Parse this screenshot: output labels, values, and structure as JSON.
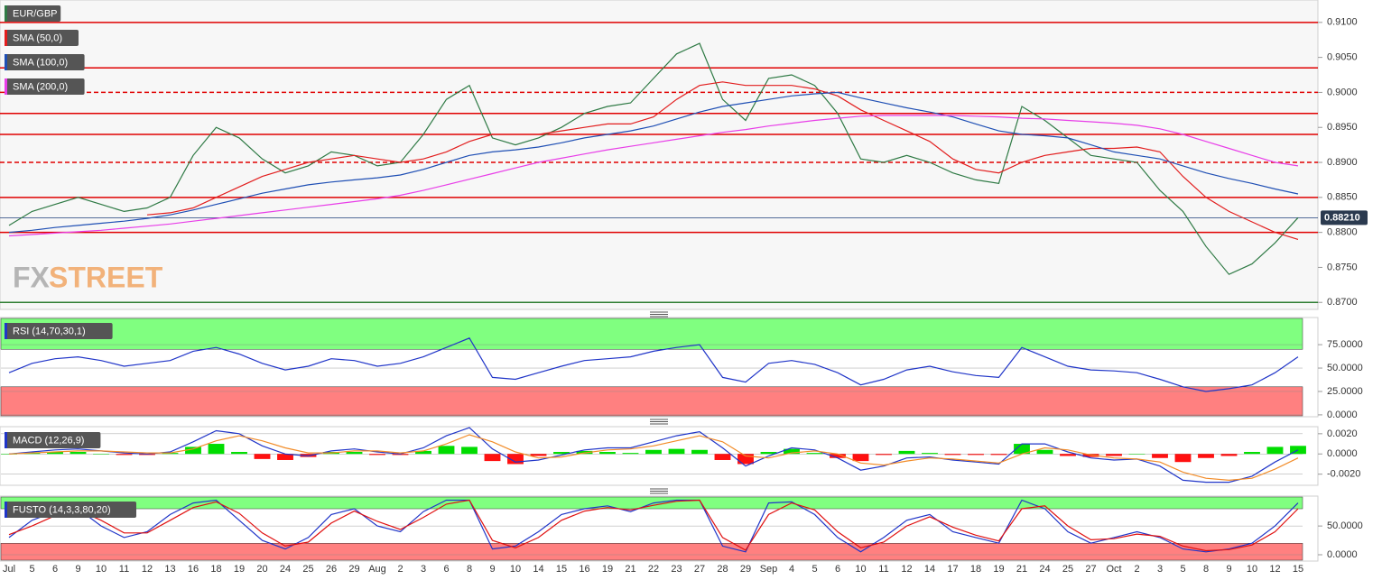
{
  "chart_data": [
    {
      "type": "line",
      "categories": [
        "Jul",
        "5",
        "6",
        "9",
        "10",
        "11",
        "12",
        "13",
        "16",
        "18",
        "19",
        "20",
        "24",
        "25",
        "26",
        "29",
        "Aug",
        "2",
        "3",
        "6",
        "8",
        "9",
        "10",
        "14",
        "15",
        "16",
        "19",
        "21",
        "22",
        "23",
        "27",
        "28",
        "29",
        "Sep",
        "4",
        "5",
        "6",
        "10",
        "11",
        "12",
        "14",
        "17",
        "18",
        "19",
        "21",
        "24",
        "25",
        "27",
        "Oct",
        "2",
        "3",
        "5",
        "8",
        "9",
        "10",
        "12",
        "15"
      ],
      "series": [
        {
          "name": "EUR/GBP",
          "color": "#2f7a45",
          "values": [
            0.881,
            0.883,
            0.884,
            0.885,
            0.884,
            0.883,
            0.8835,
            0.885,
            0.891,
            0.895,
            0.8935,
            0.8905,
            0.8885,
            0.8895,
            0.8915,
            0.891,
            0.8895,
            0.89,
            0.894,
            0.899,
            0.901,
            0.8935,
            0.8925,
            0.8935,
            0.895,
            0.897,
            0.898,
            0.8985,
            0.902,
            0.9055,
            0.907,
            0.899,
            0.896,
            0.902,
            0.9025,
            0.901,
            0.897,
            0.8905,
            0.89,
            0.891,
            0.89,
            0.8885,
            0.8875,
            0.887,
            0.898,
            0.896,
            0.8935,
            0.891,
            0.8905,
            0.89,
            0.886,
            0.883,
            0.878,
            0.874,
            0.8755,
            0.8785,
            0.8821
          ]
        },
        {
          "name": "SMA (50,0)",
          "color": "#e21d1d",
          "values": [
            null,
            null,
            null,
            null,
            null,
            null,
            0.8825,
            0.8828,
            0.8835,
            0.885,
            0.8865,
            0.888,
            0.889,
            0.89,
            0.8905,
            0.891,
            0.8905,
            0.89,
            0.8905,
            0.8915,
            0.893,
            0.894,
            0.894,
            0.894,
            0.8945,
            0.895,
            0.8955,
            0.8955,
            0.8965,
            0.899,
            0.901,
            0.9015,
            0.901,
            0.901,
            0.901,
            0.9005,
            0.8995,
            0.8975,
            0.896,
            0.8945,
            0.893,
            0.8905,
            0.889,
            0.8885,
            0.89,
            0.891,
            0.8915,
            0.892,
            0.892,
            0.8922,
            0.8915,
            0.888,
            0.885,
            0.883,
            0.8815,
            0.88,
            0.879
          ]
        },
        {
          "name": "SMA (100,0)",
          "color": "#1f4fb4",
          "values": [
            0.88,
            0.8803,
            0.8807,
            0.881,
            0.8813,
            0.8816,
            0.882,
            0.8825,
            0.8832,
            0.884,
            0.8848,
            0.8856,
            0.8862,
            0.8868,
            0.8872,
            0.8875,
            0.8878,
            0.8882,
            0.889,
            0.89,
            0.891,
            0.8915,
            0.8918,
            0.8922,
            0.8928,
            0.8935,
            0.894,
            0.8945,
            0.8952,
            0.8962,
            0.8972,
            0.898,
            0.8985,
            0.899,
            0.8995,
            0.8998,
            0.9,
            0.8992,
            0.8985,
            0.8978,
            0.8972,
            0.8965,
            0.8955,
            0.8945,
            0.894,
            0.8938,
            0.8935,
            0.8925,
            0.8915,
            0.891,
            0.8905,
            0.8895,
            0.8885,
            0.8877,
            0.887,
            0.8862,
            0.8855
          ]
        },
        {
          "name": "SMA (200,0)",
          "color": "#e83ee8",
          "values": [
            0.8795,
            0.8797,
            0.8799,
            0.8801,
            0.8803,
            0.8806,
            0.8809,
            0.8812,
            0.8816,
            0.882,
            0.8824,
            0.8828,
            0.8832,
            0.8836,
            0.884,
            0.8844,
            0.8848,
            0.8853,
            0.886,
            0.8868,
            0.8876,
            0.8884,
            0.8892,
            0.89,
            0.8906,
            0.8912,
            0.8918,
            0.8923,
            0.8928,
            0.8933,
            0.8938,
            0.8943,
            0.8947,
            0.8952,
            0.8956,
            0.896,
            0.8963,
            0.8966,
            0.8967,
            0.8967,
            0.8967,
            0.8967,
            0.8966,
            0.8965,
            0.8963,
            0.8962,
            0.896,
            0.8958,
            0.8956,
            0.8953,
            0.8948,
            0.894,
            0.893,
            0.892,
            0.891,
            0.89,
            0.8895
          ]
        }
      ],
      "levels": [
        {
          "value": 0.91,
          "style": "solid",
          "color": "#e00000"
        },
        {
          "value": 0.9035,
          "style": "solid",
          "color": "#e00000"
        },
        {
          "value": 0.9,
          "style": "dashed",
          "color": "#e00000"
        },
        {
          "value": 0.897,
          "style": "solid",
          "color": "#e00000"
        },
        {
          "value": 0.894,
          "style": "solid",
          "color": "#e00000"
        },
        {
          "value": 0.89,
          "style": "dashed",
          "color": "#e00000"
        },
        {
          "value": 0.885,
          "style": "solid",
          "color": "#e00000"
        },
        {
          "value": 0.88,
          "style": "solid",
          "color": "#e00000"
        },
        {
          "value": 0.87,
          "style": "solid",
          "color": "#2e7d32"
        }
      ],
      "last_price": {
        "value": 0.8821,
        "label": "0.88210"
      },
      "ylim": [
        0.869,
        0.9132
      ],
      "yticks": [
        {
          "value": 0.91,
          "label": "0.9100"
        },
        {
          "value": 0.905,
          "label": "0.9050"
        },
        {
          "value": 0.9,
          "label": "0.9000"
        },
        {
          "value": 0.895,
          "label": "0.8950"
        },
        {
          "value": 0.89,
          "label": "0.8900"
        },
        {
          "value": 0.885,
          "label": "0.8850"
        },
        {
          "value": 0.88,
          "label": "0.8800"
        },
        {
          "value": 0.875,
          "label": "0.8750"
        },
        {
          "value": 0.87,
          "label": "0.8700"
        }
      ]
    },
    {
      "type": "line",
      "title": "RSI (14,70,30,1)",
      "overbought": 70,
      "oversold": 30,
      "upper_color": "#80ff80",
      "lower_color": "#ff8080",
      "series": [
        {
          "color": "#2035c8",
          "values": [
            45,
            55,
            60,
            62,
            58,
            52,
            55,
            58,
            68,
            72,
            65,
            55,
            48,
            52,
            60,
            58,
            52,
            55,
            62,
            72,
            82,
            40,
            38,
            45,
            52,
            58,
            60,
            62,
            68,
            72,
            75,
            40,
            35,
            55,
            58,
            54,
            45,
            32,
            38,
            48,
            52,
            46,
            42,
            40,
            72,
            62,
            52,
            48,
            47,
            45,
            38,
            30,
            25,
            28,
            32,
            45,
            62
          ]
        }
      ],
      "ylim": [
        -2,
        104
      ],
      "yticks": [
        {
          "value": 75,
          "label": "75.0000"
        },
        {
          "value": 50,
          "label": "50.0000"
        },
        {
          "value": 25,
          "label": "25.0000"
        },
        {
          "value": 0,
          "label": "0.0000"
        }
      ]
    },
    {
      "type": "line",
      "title": "MACD (12,26,9)",
      "series": [
        {
          "color": "#2035c8",
          "values": [
            0.0,
            0.0002,
            0.0004,
            0.0005,
            0.0003,
            0.0001,
            0.0,
            0.0002,
            0.0012,
            0.0023,
            0.002,
            0.0008,
            0.0,
            -0.0002,
            0.0003,
            0.0005,
            0.0002,
            0.0,
            0.0006,
            0.0018,
            0.0026,
            0.0005,
            -0.0008,
            -0.0006,
            -0.0001,
            0.0004,
            0.0006,
            0.0006,
            0.0012,
            0.0018,
            0.0022,
            0.0006,
            -0.0012,
            -0.0002,
            0.0006,
            0.0004,
            -0.0004,
            -0.0016,
            -0.0012,
            -0.0004,
            -0.0003,
            -0.0006,
            -0.0008,
            -0.001,
            0.001,
            0.001,
            0.0002,
            -0.0004,
            -0.0006,
            -0.0005,
            -0.0012,
            -0.0026,
            -0.0028,
            -0.0028,
            -0.0022,
            -0.0008,
            0.0004
          ]
        },
        {
          "color": "#f28c28",
          "values": [
            0.0,
            0.0001,
            0.0002,
            0.0003,
            0.0003,
            0.0002,
            0.0001,
            0.0001,
            0.0005,
            0.0013,
            0.0018,
            0.0013,
            0.0006,
            0.0001,
            0.0001,
            0.0003,
            0.0003,
            0.0001,
            0.0003,
            0.001,
            0.0019,
            0.0012,
            0.0002,
            -0.0004,
            -0.0003,
            0.0001,
            0.0004,
            0.0005,
            0.0008,
            0.0013,
            0.0018,
            0.0012,
            -0.0002,
            -0.0004,
            0.0001,
            0.0003,
            0.0,
            -0.0009,
            -0.0011,
            -0.0007,
            -0.0004,
            -0.0005,
            -0.0007,
            -0.0009,
            0.0,
            0.0006,
            0.0004,
            -0.0001,
            -0.0004,
            -0.0005,
            -0.0008,
            -0.0018,
            -0.0024,
            -0.0026,
            -0.0024,
            -0.0015,
            -0.0004
          ]
        }
      ],
      "histogram": {
        "up_color": "#00dd00",
        "down_color": "#ff1010",
        "values": [
          0,
          0.0001,
          0.0002,
          0.0002,
          0,
          -0.0001,
          -0.0001,
          0.0001,
          0.0007,
          0.001,
          0.0002,
          -0.0005,
          -0.0006,
          -0.0003,
          0.0002,
          0.0002,
          -0.0001,
          -0.0001,
          0.0003,
          0.0008,
          0.0007,
          -0.0007,
          -0.001,
          -0.0002,
          0.0002,
          0.0003,
          0.0002,
          0.0001,
          0.0004,
          0.0005,
          0.0004,
          -0.0006,
          -0.001,
          0.0002,
          0.0005,
          0.0001,
          -0.0004,
          -0.0007,
          -0.0001,
          0.0003,
          0.0001,
          -0.0001,
          -0.0001,
          -0.0001,
          0.001,
          0.0004,
          -0.0002,
          -0.0003,
          -0.0002,
          0,
          -0.0004,
          -0.0008,
          -0.0004,
          -0.0002,
          0.0002,
          0.0007,
          0.0008
        ]
      },
      "ylim": [
        -0.0031,
        0.0027
      ],
      "yticks": [
        {
          "value": 0.002,
          "label": "0.0020"
        },
        {
          "value": 0,
          "label": "0.0000"
        },
        {
          "value": -0.002,
          "label": "-0.0020"
        }
      ]
    },
    {
      "type": "line",
      "title": "FUSTO (14,3,3,80,20)",
      "overbought": 80,
      "oversold": 20,
      "upper_color": "#80ff80",
      "lower_color": "#ff8080",
      "series": [
        {
          "color": "#2035c8",
          "values": [
            30,
            60,
            75,
            80,
            50,
            30,
            40,
            70,
            90,
            95,
            60,
            25,
            10,
            30,
            70,
            80,
            50,
            40,
            75,
            95,
            95,
            10,
            15,
            40,
            70,
            80,
            85,
            75,
            90,
            95,
            95,
            15,
            5,
            90,
            92,
            70,
            30,
            5,
            30,
            60,
            70,
            40,
            30,
            20,
            95,
            80,
            40,
            20,
            30,
            40,
            30,
            10,
            5,
            10,
            20,
            50,
            90
          ]
        },
        {
          "color": "#e01010",
          "values": [
            35,
            50,
            68,
            78,
            60,
            38,
            38,
            60,
            82,
            92,
            72,
            38,
            15,
            22,
            55,
            76,
            58,
            44,
            65,
            88,
            95,
            25,
            12,
            30,
            60,
            76,
            82,
            78,
            86,
            93,
            95,
            30,
            8,
            70,
            90,
            78,
            40,
            12,
            22,
            50,
            66,
            48,
            34,
            24,
            80,
            85,
            50,
            26,
            28,
            36,
            32,
            15,
            7,
            9,
            17,
            40,
            80
          ]
        }
      ],
      "ylim": [
        -11,
        102
      ],
      "yticks": [
        {
          "value": 50,
          "label": "50.0000"
        },
        {
          "value": 0,
          "label": "0.0000"
        }
      ]
    }
  ],
  "watermark": {
    "left": "FX",
    "right": "STREET"
  }
}
